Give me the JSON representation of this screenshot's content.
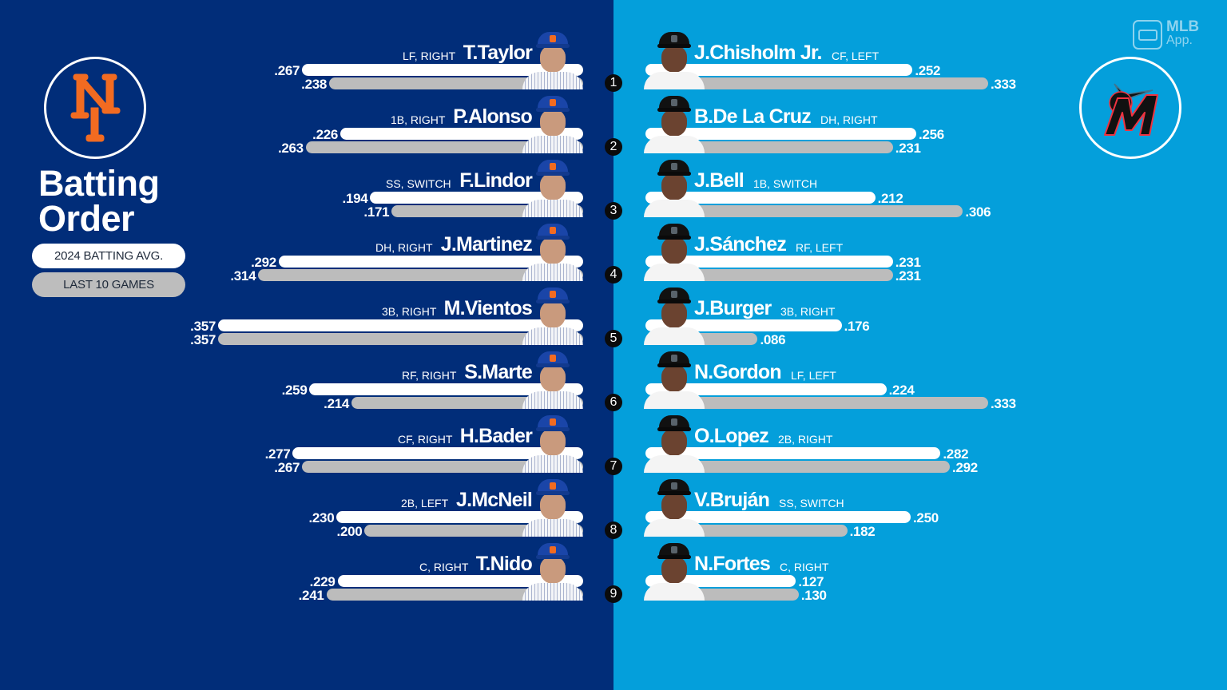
{
  "title": "Batting Order",
  "title_lines": [
    "Batting",
    "Order"
  ],
  "legend": {
    "season": "2024 BATTING AVG.",
    "last10": "LAST 10 GAMES",
    "season_color": "#ffffff",
    "last10_color": "#bcbcbc"
  },
  "branding": {
    "app_line1": "MLB",
    "app_line2": "App."
  },
  "teams": {
    "left": {
      "name": "New York Mets",
      "logo": "mets-ny-logo",
      "bg_color": "#012d79",
      "accent": "#f26b21"
    },
    "right": {
      "name": "Miami Marlins",
      "logo": "marlins-m-logo",
      "bg_color": "#049fdb",
      "accent": "#ef3340"
    }
  },
  "mets": [
    {
      "order": "1",
      "name": "T.Taylor",
      "pos": "LF, RIGHT",
      "season": ".267",
      "last10": ".238"
    },
    {
      "order": "2",
      "name": "P.Alonso",
      "pos": "1B, RIGHT",
      "season": ".226",
      "last10": ".263"
    },
    {
      "order": "3",
      "name": "F.Lindor",
      "pos": "SS, SWITCH",
      "season": ".194",
      "last10": ".171"
    },
    {
      "order": "4",
      "name": "J.Martinez",
      "pos": "DH, RIGHT",
      "season": ".292",
      "last10": ".314"
    },
    {
      "order": "5",
      "name": "M.Vientos",
      "pos": "3B, RIGHT",
      "season": ".357",
      "last10": ".357"
    },
    {
      "order": "6",
      "name": "S.Marte",
      "pos": "RF, RIGHT",
      "season": ".259",
      "last10": ".214"
    },
    {
      "order": "7",
      "name": "H.Bader",
      "pos": "CF, RIGHT",
      "season": ".277",
      "last10": ".267"
    },
    {
      "order": "8",
      "name": "J.McNeil",
      "pos": "2B, LEFT",
      "season": ".230",
      "last10": ".200"
    },
    {
      "order": "9",
      "name": "T.Nido",
      "pos": "C, RIGHT",
      "season": ".229",
      "last10": ".241"
    }
  ],
  "marlins": [
    {
      "order": "1",
      "name": "J.Chisholm Jr.",
      "pos": "CF, LEFT",
      "season": ".252",
      "last10": ".333"
    },
    {
      "order": "2",
      "name": "B.De La Cruz",
      "pos": "DH, RIGHT",
      "season": ".256",
      "last10": ".231"
    },
    {
      "order": "3",
      "name": "J.Bell",
      "pos": "1B, SWITCH",
      "season": ".212",
      "last10": ".306"
    },
    {
      "order": "4",
      "name": "J.Sánchez",
      "pos": "RF, LEFT",
      "season": ".231",
      "last10": ".231"
    },
    {
      "order": "5",
      "name": "J.Burger",
      "pos": "3B, RIGHT",
      "season": ".176",
      "last10": ".086"
    },
    {
      "order": "6",
      "name": "N.Gordon",
      "pos": "LF, LEFT",
      "season": ".224",
      "last10": ".333"
    },
    {
      "order": "7",
      "name": "O.Lopez",
      "pos": "2B, RIGHT",
      "season": ".282",
      "last10": ".292"
    },
    {
      "order": "8",
      "name": "V.Bruján",
      "pos": "SS, SWITCH",
      "season": ".250",
      "last10": ".182"
    },
    {
      "order": "9",
      "name": "N.Fortes",
      "pos": "C, RIGHT",
      "season": ".127",
      "last10": ".130"
    }
  ],
  "chart_data": {
    "type": "bar",
    "title": "Batting Order",
    "orientation": "horizontal",
    "legend": [
      "2024 BATTING AVG.",
      "LAST 10 GAMES"
    ],
    "charts": [
      {
        "team": "Mets",
        "categories": [
          "T.Taylor",
          "P.Alonso",
          "F.Lindor",
          "J.Martinez",
          "M.Vientos",
          "S.Marte",
          "H.Bader",
          "J.McNeil",
          "T.Nido"
        ],
        "series": [
          {
            "name": "2024 BATTING AVG.",
            "values": [
              0.267,
              0.226,
              0.194,
              0.292,
              0.357,
              0.259,
              0.277,
              0.23,
              0.229
            ]
          },
          {
            "name": "LAST 10 GAMES",
            "values": [
              0.238,
              0.263,
              0.171,
              0.314,
              0.357,
              0.214,
              0.267,
              0.2,
              0.241
            ]
          }
        ]
      },
      {
        "team": "Marlins",
        "categories": [
          "J.Chisholm Jr.",
          "B.De La Cruz",
          "J.Bell",
          "J.Sánchez",
          "J.Burger",
          "N.Gordon",
          "O.Lopez",
          "V.Bruján",
          "N.Fortes"
        ],
        "series": [
          {
            "name": "2024 BATTING AVG.",
            "values": [
              0.252,
              0.256,
              0.212,
              0.231,
              0.176,
              0.224,
              0.282,
              0.25,
              0.127
            ]
          },
          {
            "name": "LAST 10 GAMES",
            "values": [
              0.333,
              0.231,
              0.306,
              0.231,
              0.086,
              0.333,
              0.292,
              0.182,
              0.13
            ]
          }
        ]
      }
    ],
    "xlabel": "",
    "ylabel": "Batting order"
  }
}
